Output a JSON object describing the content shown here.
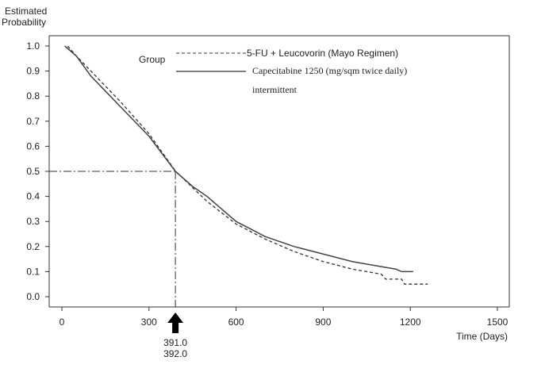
{
  "chart_data": {
    "type": "line",
    "ylabel": "Estimated Probability",
    "xlabel": "Time (Days)",
    "xlim": [
      0,
      1500
    ],
    "ylim": [
      0,
      1.0
    ],
    "xticks": [
      0,
      300,
      600,
      900,
      1200,
      1500
    ],
    "yticks": [
      0.0,
      0.1,
      0.2,
      0.3,
      0.4,
      0.5,
      0.6,
      0.7,
      0.8,
      0.9,
      1.0
    ],
    "grid": false,
    "legend": {
      "title": "Group",
      "placement": "top-center",
      "entries": [
        "5-FU + Leucovorin (Mayo Regimen)",
        "Capecitabine 1250 (mg/sqm twice daily)",
        "intermittent"
      ]
    },
    "series": [
      {
        "name": "5-FU + Leucovorin (Mayo Regimen)",
        "style": "dashed",
        "x": [
          20,
          50,
          100,
          200,
          300,
          392,
          500,
          600,
          700,
          800,
          900,
          1000,
          1100,
          1115,
          1170,
          1180,
          1260
        ],
        "y": [
          1.0,
          0.96,
          0.9,
          0.78,
          0.65,
          0.5,
          0.38,
          0.29,
          0.23,
          0.18,
          0.14,
          0.11,
          0.09,
          0.07,
          0.07,
          0.05,
          0.05
        ]
      },
      {
        "name": "Capecitabine 1250 (mg/sqm twice daily) intermittent",
        "style": "solid",
        "x": [
          10,
          50,
          100,
          200,
          300,
          391,
          450,
          500,
          600,
          700,
          800,
          900,
          1000,
          1100,
          1150,
          1170,
          1210
        ],
        "y": [
          1.0,
          0.96,
          0.88,
          0.76,
          0.64,
          0.5,
          0.44,
          0.4,
          0.3,
          0.24,
          0.2,
          0.17,
          0.14,
          0.12,
          0.11,
          0.1,
          0.1
        ]
      }
    ],
    "annotations": {
      "median_probability": 0.5,
      "median_marker_x": 391,
      "median_labels": [
        "391.0",
        "392.0"
      ]
    }
  }
}
